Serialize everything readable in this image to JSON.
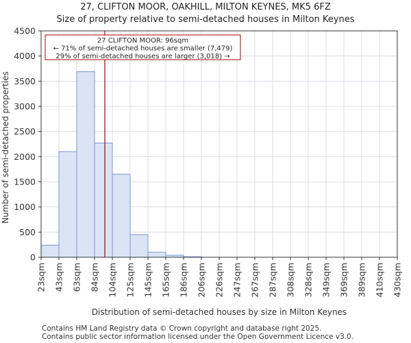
{
  "header": {
    "title": "27, CLIFTON MOOR, OAKHILL, MILTON KEYNES, MK5 6FZ",
    "subtitle": "Size of property relative to semi-detached houses in Milton Keynes"
  },
  "footer": {
    "line1": "Contains HM Land Registry data © Crown copyright and database right 2025.",
    "line2": "Contains public sector information licensed under the Open Government Licence v3.0."
  },
  "chart_data": {
    "type": "bar",
    "title": "Size of property relative to semi-detached houses in Milton Keynes",
    "xlabel": "Distribution of semi-detached houses by size in Milton Keynes",
    "ylabel": "Number of semi-detached properties",
    "categories": [
      "23sqm",
      "43sqm",
      "63sqm",
      "84sqm",
      "104sqm",
      "125sqm",
      "145sqm",
      "165sqm",
      "186sqm",
      "206sqm",
      "226sqm",
      "247sqm",
      "267sqm",
      "287sqm",
      "308sqm",
      "328sqm",
      "349sqm",
      "369sqm",
      "389sqm",
      "410sqm",
      "430sqm"
    ],
    "values": [
      240,
      2100,
      3690,
      2270,
      1650,
      450,
      100,
      40,
      10,
      0,
      0,
      0,
      0,
      0,
      0,
      0,
      0,
      0,
      0,
      0,
      0
    ],
    "ylim": [
      0,
      4500
    ],
    "yticks": [
      0,
      500,
      1000,
      1500,
      2000,
      2500,
      3000,
      3500,
      4000,
      4500
    ],
    "grid": true,
    "bar_color": "#dbe4f5",
    "bar_edge_color": "#7a96cc",
    "marker": {
      "value_bin": 3.5,
      "color": "#aa0000",
      "annotation": [
        "27 CLIFTON MOOR: 96sqm",
        "← 71% of semi-detached houses are smaller (7,479)",
        "29% of semi-detached houses are larger (3,018) →"
      ]
    }
  }
}
